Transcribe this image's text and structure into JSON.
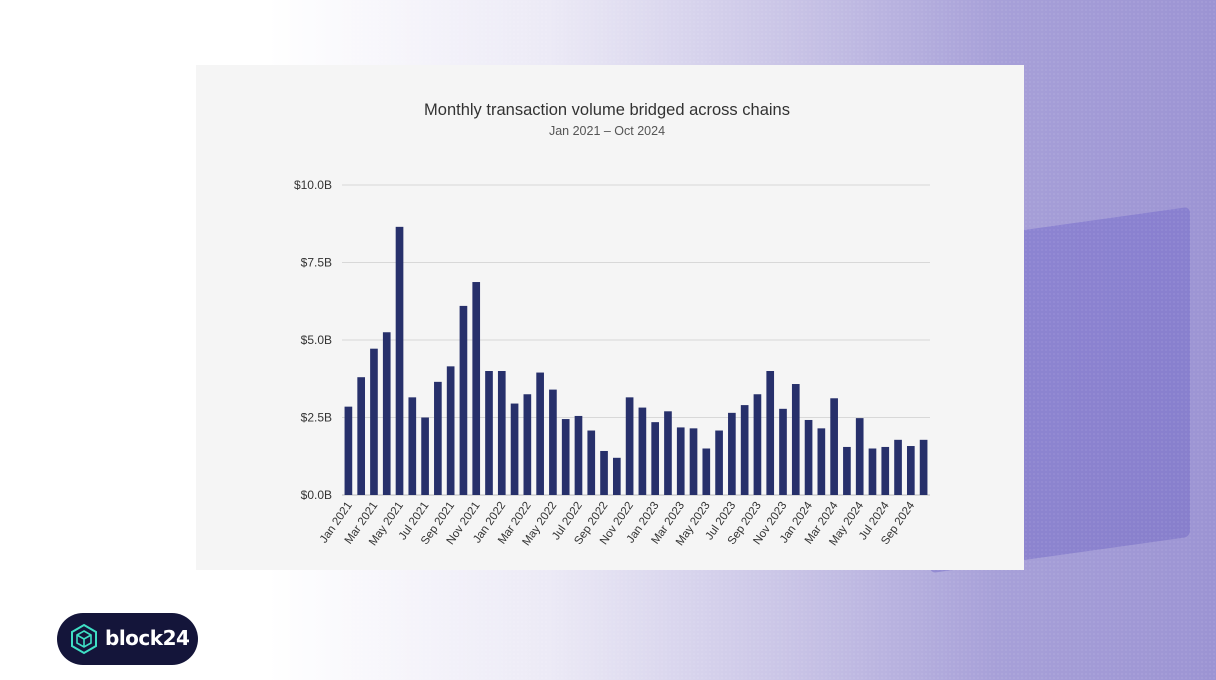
{
  "brand": {
    "name": "block24",
    "accent": "#3fe0c5",
    "badge_bg": "#14153a"
  },
  "chart_data": {
    "type": "bar",
    "title": "Monthly transaction volume bridged across chains",
    "subtitle": "Jan 2021 – Oct 2024",
    "xlabel": "",
    "ylabel": "",
    "ylim": [
      0,
      10
    ],
    "yticks": [
      0,
      2.5,
      5,
      7.5,
      10
    ],
    "ytick_labels": [
      "$0.0B",
      "$2.5B",
      "$5.0B",
      "$7.5B",
      "$10.0B"
    ],
    "grid": true,
    "bar_color": "#27306b",
    "categories": [
      "Jan 2021",
      "Feb 2021",
      "Mar 2021",
      "Apr 2021",
      "May 2021",
      "Jun 2021",
      "Jul 2021",
      "Aug 2021",
      "Sep 2021",
      "Oct 2021",
      "Nov 2021",
      "Dec 2021",
      "Jan 2022",
      "Feb 2022",
      "Mar 2022",
      "Apr 2022",
      "May 2022",
      "Jun 2022",
      "Jul 2022",
      "Aug 2022",
      "Sep 2022",
      "Oct 2022",
      "Nov 2022",
      "Dec 2022",
      "Jan 2023",
      "Feb 2023",
      "Mar 2023",
      "Apr 2023",
      "May 2023",
      "Jun 2023",
      "Jul 2023",
      "Aug 2023",
      "Sep 2023",
      "Oct 2023",
      "Nov 2023",
      "Dec 2023",
      "Jan 2024",
      "Feb 2024",
      "Mar 2024",
      "Apr 2024",
      "May 2024",
      "Jun 2024",
      "Jul 2024",
      "Aug 2024",
      "Sep 2024",
      "Oct 2024"
    ],
    "tick_labels": [
      "Jan 2021",
      "Mar 2021",
      "May 2021",
      "Jul 2021",
      "Sep 2021",
      "Nov 2021",
      "Jan 2022",
      "Mar 2022",
      "May 2022",
      "Jul 2022",
      "Sep 2022",
      "Nov 2022",
      "Jan 2023",
      "Mar 2023",
      "May 2023",
      "Jul 2023",
      "Sep 2023",
      "Nov 2023",
      "Jan 2024",
      "Mar 2024",
      "May 2024",
      "Jul 2024",
      "Sep 2024"
    ],
    "values": [
      2.85,
      3.8,
      4.72,
      5.25,
      8.65,
      3.15,
      2.5,
      3.65,
      4.15,
      6.1,
      6.87,
      4.0,
      4.0,
      2.95,
      3.25,
      3.95,
      3.4,
      2.45,
      2.55,
      2.08,
      1.42,
      1.2,
      3.15,
      2.82,
      2.35,
      2.7,
      2.18,
      2.15,
      1.5,
      2.08,
      2.65,
      2.9,
      3.25,
      4.0,
      2.78,
      3.58,
      2.42,
      2.15,
      3.12,
      1.55,
      2.48,
      1.5,
      1.55,
      1.78,
      1.58,
      1.78
    ]
  }
}
